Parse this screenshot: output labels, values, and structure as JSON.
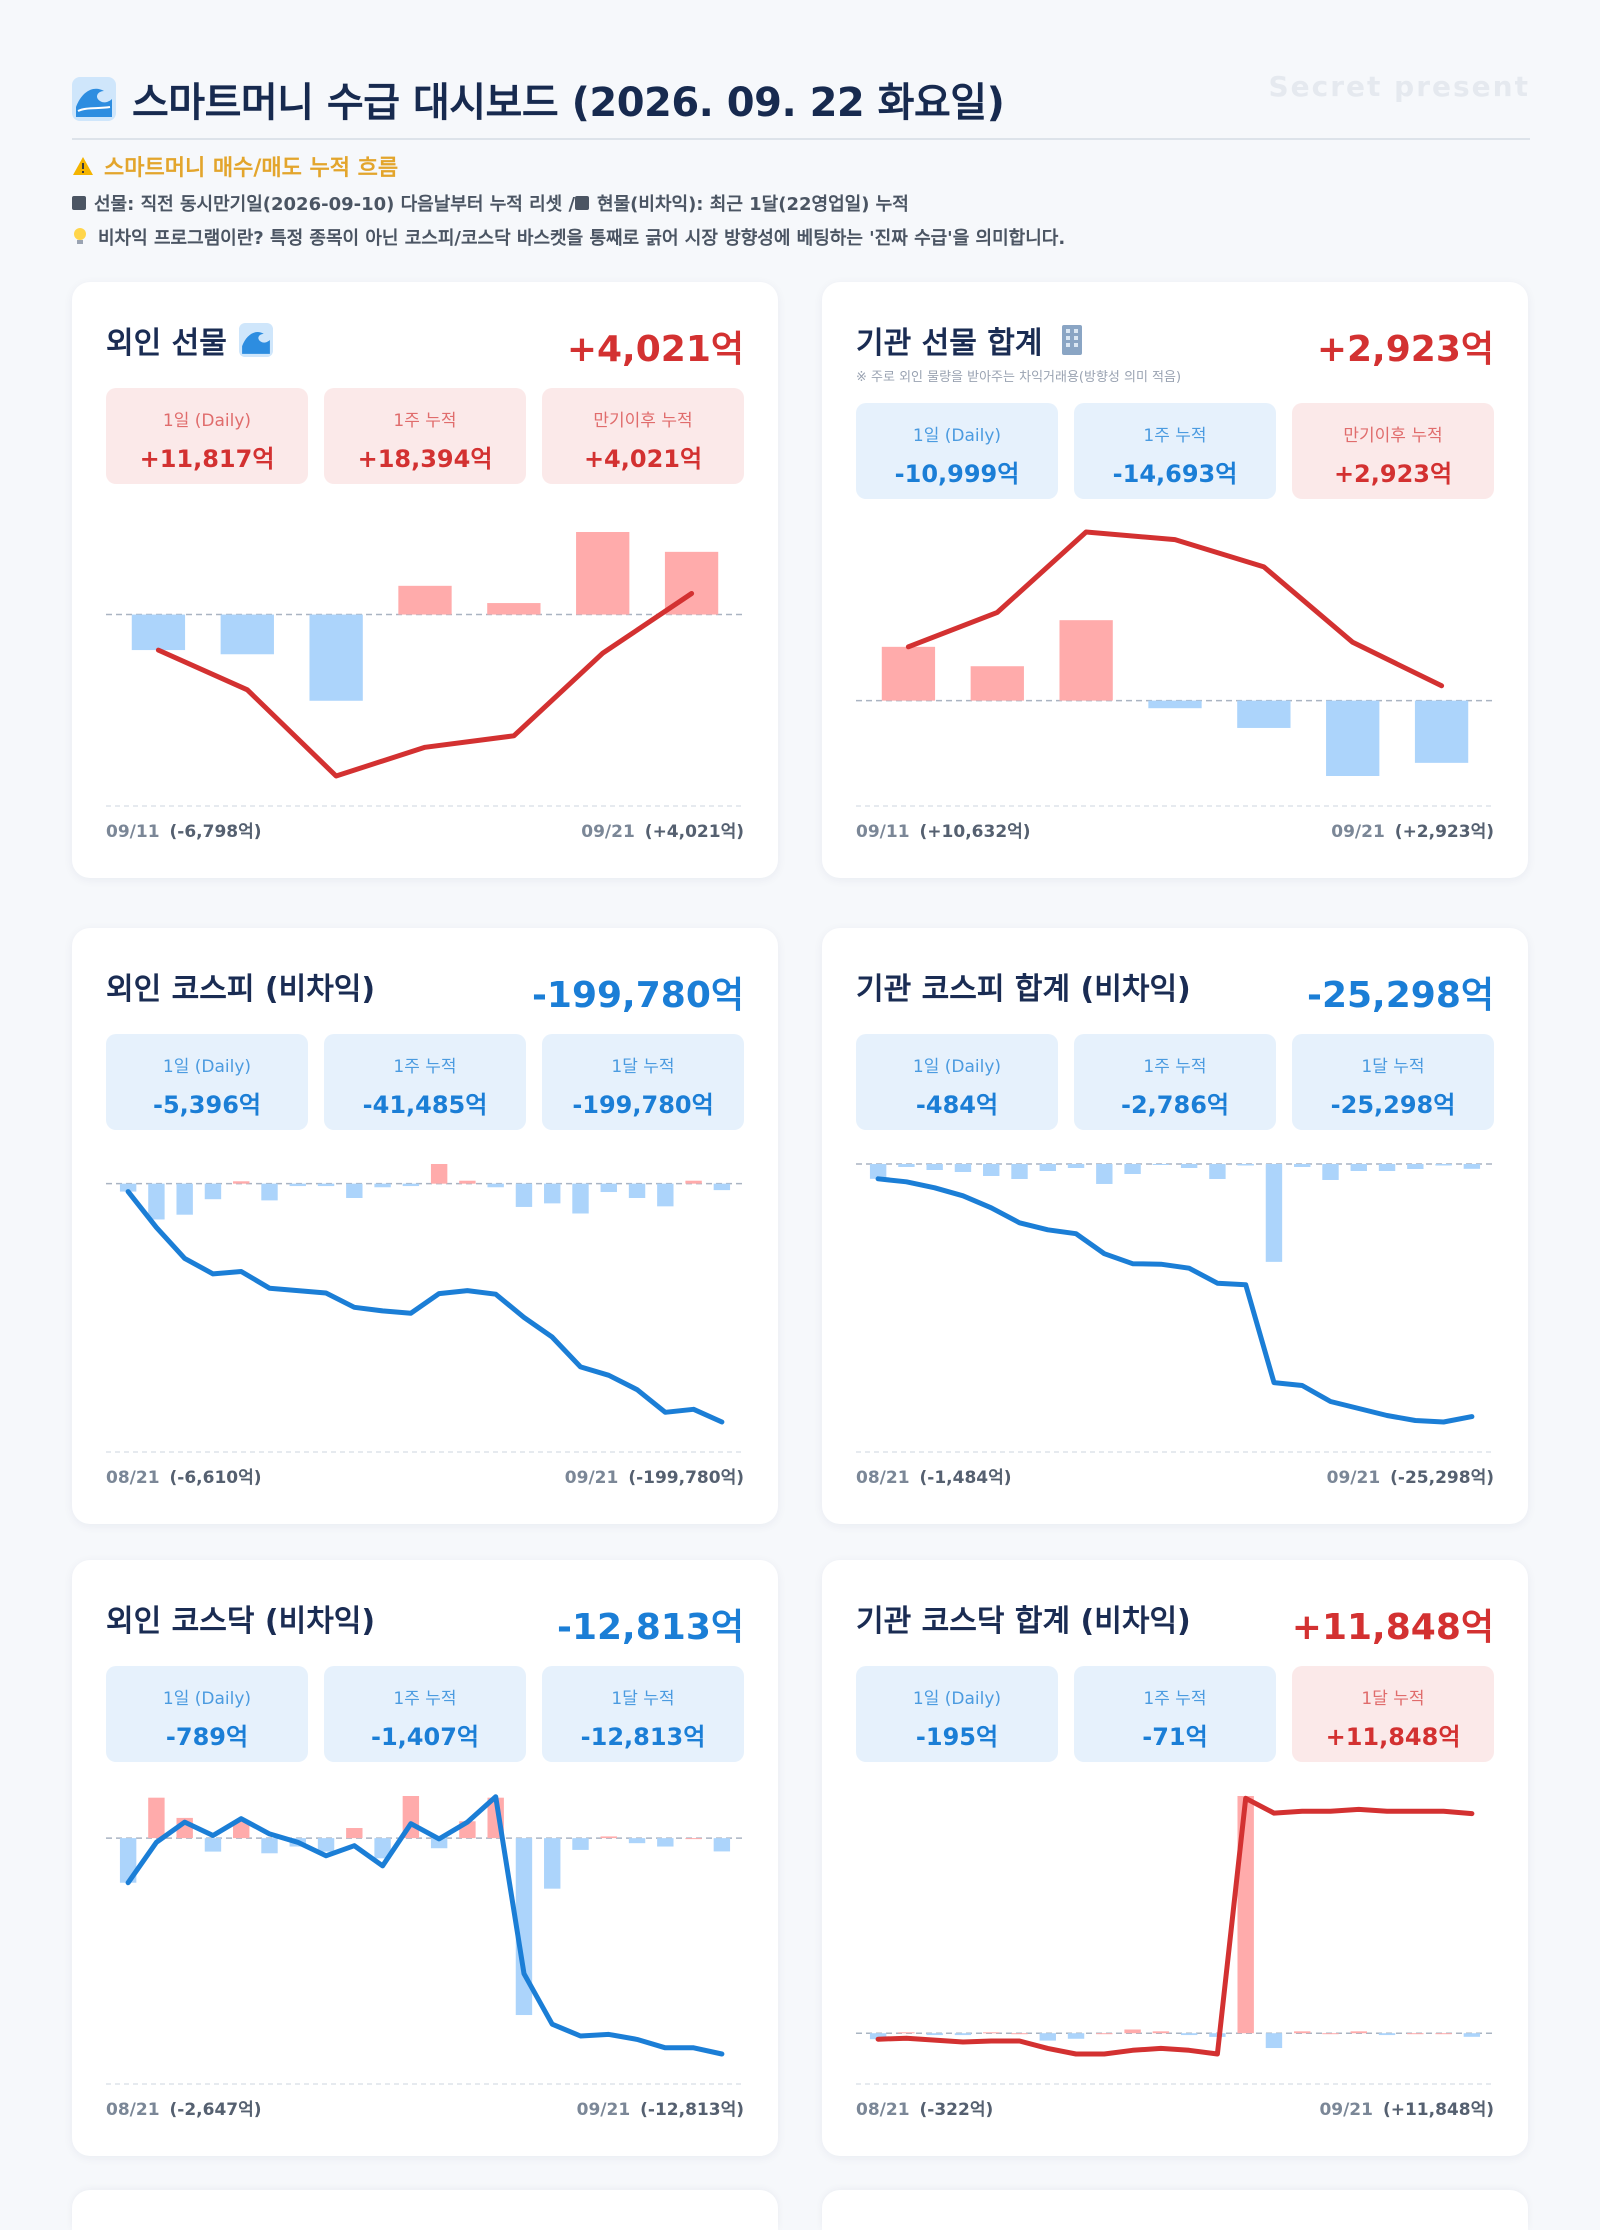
{
  "header": {
    "title": "스마트머니 수급 대시보드 (2026. 09. 22 화요일)",
    "watermark": "Secret present",
    "title_icon": "wave-icon"
  },
  "notice": {
    "line1": "스마트머니 매수/매도 누적 흐름",
    "line1_icon": "warning-icon",
    "line2": "선물: 직전 동시만기일(2026-09-10) 다음날부터 누적 리셋 / ",
    "line2b": "현물(비차익): 최근 1달(22영업일) 누적",
    "line3": "비차익 프로그램이란? 특정 종목이 아닌 코스피/코스닥 바스켓을 통째로 긁어 시장 방향성에 베팅하는 '진짜 수급'을 의미합니다.",
    "line3_icon": "lightbulb-icon"
  },
  "colors": {
    "positive": "#d33131",
    "negative": "#1b7ed6",
    "bar_positive": "#ffabab",
    "bar_negative": "#acd4fb",
    "title": "#1a2c53"
  },
  "cards": [
    {
      "title": "외인 선물",
      "icon": "wave-icon",
      "subtitle": "",
      "total": "+4,021억",
      "stats": [
        {
          "label": "1일 (Daily)",
          "value": "+11,817억"
        },
        {
          "label": "1주 누적",
          "value": "+18,394억"
        },
        {
          "label": "만기이후 누적",
          "value": "+4,021억"
        }
      ],
      "start_date": "09/11",
      "start_value": "(-6,798억)",
      "end_date": "09/21",
      "end_value": "(+4,021억)"
    },
    {
      "title": "기관 선물 합계",
      "icon": "building-icon",
      "subtitle": "※ 주로 외인 물량을 받아주는 차익거래용(방향성 의미 적음)",
      "total": "+2,923억",
      "stats": [
        {
          "label": "1일 (Daily)",
          "value": "-10,999억"
        },
        {
          "label": "1주 누적",
          "value": "-14,693억"
        },
        {
          "label": "만기이후 누적",
          "value": "+2,923억"
        }
      ],
      "start_date": "09/11",
      "start_value": "(+10,632억)",
      "end_date": "09/21",
      "end_value": "(+2,923억)"
    },
    {
      "title": "외인 코스피 (비차익)",
      "icon": "",
      "subtitle": "",
      "total": "-199,780억",
      "stats": [
        {
          "label": "1일 (Daily)",
          "value": "-5,396억"
        },
        {
          "label": "1주 누적",
          "value": "-41,485억"
        },
        {
          "label": "1달 누적",
          "value": "-199,780억"
        }
      ],
      "start_date": "08/21",
      "start_value": "(-6,610억)",
      "end_date": "09/21",
      "end_value": "(-199,780억)"
    },
    {
      "title": "기관 코스피 합계 (비차익)",
      "icon": "",
      "subtitle": "",
      "total": "-25,298억",
      "stats": [
        {
          "label": "1일 (Daily)",
          "value": "-484억"
        },
        {
          "label": "1주 누적",
          "value": "-2,786억"
        },
        {
          "label": "1달 누적",
          "value": "-25,298억"
        }
      ],
      "start_date": "08/21",
      "start_value": "(-1,484억)",
      "end_date": "09/21",
      "end_value": "(-25,298억)"
    },
    {
      "title": "외인 코스닥 (비차익)",
      "icon": "",
      "subtitle": "",
      "total": "-12,813억",
      "stats": [
        {
          "label": "1일 (Daily)",
          "value": "-789억"
        },
        {
          "label": "1주 누적",
          "value": "-1,407억"
        },
        {
          "label": "1달 누적",
          "value": "-12,813억"
        }
      ],
      "start_date": "08/21",
      "start_value": "(-2,647억)",
      "end_date": "09/21",
      "end_value": "(-12,813억)"
    },
    {
      "title": "기관 코스닥 합계 (비차익)",
      "icon": "",
      "subtitle": "",
      "total": "+11,848억",
      "stats": [
        {
          "label": "1일 (Daily)",
          "value": "-195억"
        },
        {
          "label": "1주 누적",
          "value": "-71억"
        },
        {
          "label": "1달 누적",
          "value": "+11,848억"
        }
      ],
      "start_date": "08/21",
      "start_value": "(-322억)",
      "end_date": "09/21",
      "end_value": "(+11,848억)"
    }
  ],
  "chart_data": [
    {
      "type": "bar",
      "overlay": "line",
      "bars_name": "daily",
      "line_name": "cumulative",
      "bars": [
        -6798,
        -7600,
        -16500,
        5500,
        2200,
        15800,
        12000
      ],
      "line": [
        -6798,
        -14400,
        -30900,
        -25400,
        -23200,
        -7400,
        4021
      ]
    },
    {
      "type": "bar",
      "overlay": "line",
      "bars": [
        10632,
        6800,
        15900,
        -1500,
        -5400,
        -14900,
        -12300
      ],
      "line": [
        10632,
        17432,
        33332,
        31832,
        26432,
        11532,
        2923
      ]
    },
    {
      "type": "bar",
      "overlay": "line",
      "bars": [
        -6610,
        -30000,
        -26000,
        -13000,
        2000,
        -14000,
        -2000,
        -2000,
        -12000,
        -3000,
        -2000,
        16500,
        2500,
        -3000,
        -19500,
        -16500,
        -25000,
        -7000,
        -12000,
        -19000,
        2500,
        -5396
      ],
      "line": [
        -6610,
        -36610,
        -62610,
        -75610,
        -73610,
        -87610,
        -89610,
        -91610,
        -103610,
        -106610,
        -108610,
        -92110,
        -89610,
        -92610,
        -112110,
        -128610,
        -153610,
        -160610,
        -172610,
        -191610,
        -189110,
        -199780
      ]
    },
    {
      "type": "bar",
      "overlay": "line",
      "bars": [
        -1484,
        -300,
        -600,
        -800,
        -1200,
        -1500,
        -700,
        -400,
        -2000,
        -1000,
        -50,
        -400,
        -1500,
        -150,
        -9800,
        -300,
        -1600,
        -700,
        -700,
        -500,
        -150,
        -484
      ],
      "line": [
        -1484,
        -1784,
        -2384,
        -3184,
        -4384,
        -5884,
        -6584,
        -6984,
        -8984,
        -9984,
        -10034,
        -10434,
        -11934,
        -12084,
        -21884,
        -22184,
        -23784,
        -24484,
        -25184,
        -25684,
        -25834,
        -25298
      ]
    },
    {
      "type": "bar",
      "overlay": "line",
      "bars": [
        -2647,
        2400,
        1200,
        -800,
        1000,
        -900,
        -500,
        -800,
        600,
        -1200,
        2500,
        -600,
        1000,
        2400,
        -10500,
        -3000,
        -700,
        100,
        -300,
        -500,
        0,
        -789
      ],
      "line": [
        -2647,
        -247,
        953,
        153,
        1153,
        253,
        -247,
        -1047,
        -447,
        -1647,
        853,
        -47,
        953,
        2453,
        -8047,
        -11047,
        -11747,
        -11647,
        -11947,
        -12447,
        -12447,
        -12813
      ]
    },
    {
      "type": "bar",
      "overlay": "line",
      "bars": [
        -322,
        50,
        -100,
        -100,
        50,
        0,
        -400,
        -300,
        0,
        200,
        100,
        -100,
        -200,
        12800,
        -800,
        100,
        0,
        100,
        -100,
        0,
        0,
        -195
      ],
      "line": [
        -322,
        -272,
        -372,
        -472,
        -422,
        -422,
        -822,
        -1122,
        -1122,
        -922,
        -822,
        -922,
        -1122,
        12678,
        11878,
        11978,
        11978,
        12078,
        11978,
        11978,
        11978,
        11848
      ]
    }
  ]
}
